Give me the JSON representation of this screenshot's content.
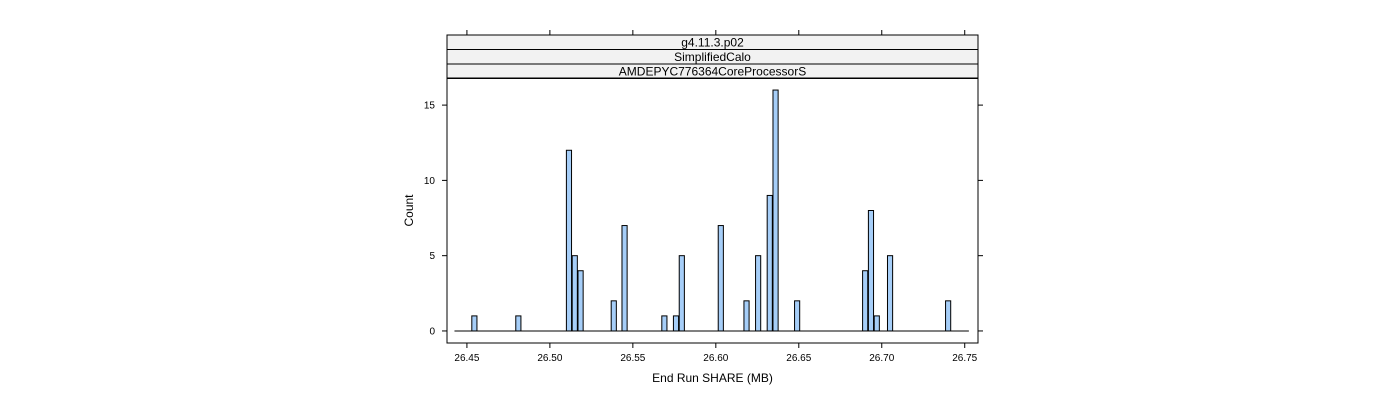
{
  "chart_data": {
    "type": "bar",
    "strips": [
      "g4.11.3.p02",
      "SimplifiedCalo",
      "AMDEPYC776364CoreProcessorS"
    ],
    "xlabel": "End Run SHARE (MB)",
    "ylabel": "Count",
    "xlim": [
      26.438,
      26.758
    ],
    "ylim": [
      -0.8,
      16.8
    ],
    "x_ticks": [
      26.45,
      26.5,
      26.55,
      26.6,
      26.65,
      26.7,
      26.75
    ],
    "x_tick_labels": [
      "26.45",
      "26.50",
      "26.55",
      "26.60",
      "26.65",
      "26.70",
      "26.75"
    ],
    "y_ticks": [
      0,
      5,
      10,
      15
    ],
    "y_tick_labels": [
      "0",
      "5",
      "10",
      "15"
    ],
    "bin_width": 0.0031,
    "x_range": [
      26.4425,
      26.7525
    ],
    "bins": [
      {
        "x": 26.4545,
        "count": 1
      },
      {
        "x": 26.481,
        "count": 1
      },
      {
        "x": 26.5115,
        "count": 12
      },
      {
        "x": 26.515,
        "count": 5
      },
      {
        "x": 26.5185,
        "count": 4
      },
      {
        "x": 26.5385,
        "count": 2
      },
      {
        "x": 26.545,
        "count": 7
      },
      {
        "x": 26.569,
        "count": 1
      },
      {
        "x": 26.576,
        "count": 1
      },
      {
        "x": 26.5795,
        "count": 5
      },
      {
        "x": 26.603,
        "count": 7
      },
      {
        "x": 26.6185,
        "count": 2
      },
      {
        "x": 26.6255,
        "count": 5
      },
      {
        "x": 26.6325,
        "count": 9
      },
      {
        "x": 26.636,
        "count": 16
      },
      {
        "x": 26.649,
        "count": 2
      },
      {
        "x": 26.69,
        "count": 4
      },
      {
        "x": 26.6935,
        "count": 8
      },
      {
        "x": 26.697,
        "count": 1
      },
      {
        "x": 26.705,
        "count": 5
      },
      {
        "x": 26.74,
        "count": 2
      }
    ],
    "grid": false,
    "bar_fill": "#a6cef8",
    "strip_fill": "#f2f2f2"
  }
}
